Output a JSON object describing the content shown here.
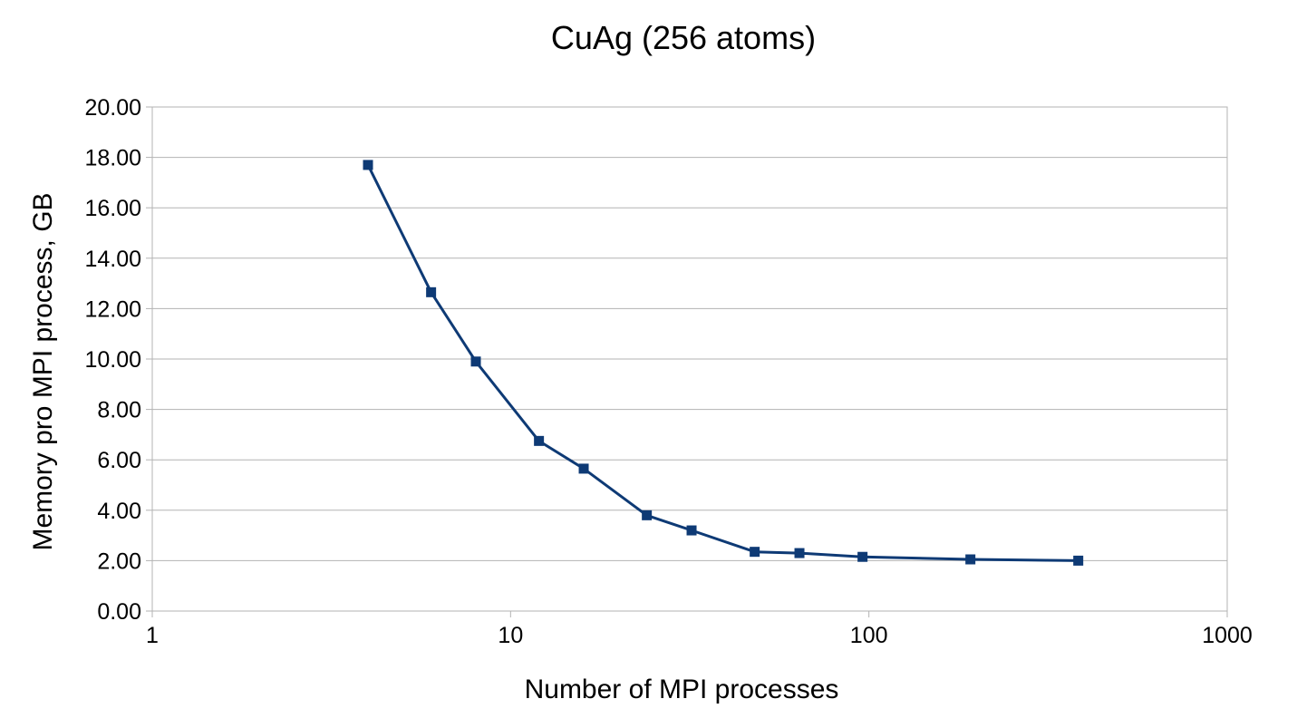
{
  "chart_data": {
    "type": "line",
    "title": "CuAg (256 atoms)",
    "xlabel": "Number of MPI processes",
    "ylabel": "Memory pro MPI process, GB",
    "xscale": "log",
    "xlim": [
      1,
      1000
    ],
    "ylim": [
      0,
      20
    ],
    "x_ticks": [
      1,
      10,
      100,
      1000
    ],
    "x_tick_labels": [
      "1",
      "10",
      "100",
      "1000"
    ],
    "y_ticks": [
      0,
      2,
      4,
      6,
      8,
      10,
      12,
      14,
      16,
      18,
      20
    ],
    "y_tick_labels": [
      "0.00",
      "2.00",
      "4.00",
      "6.00",
      "8.00",
      "10.00",
      "12.00",
      "14.00",
      "16.00",
      "18.00",
      "20.00"
    ],
    "grid": "horizontal",
    "legend": "none",
    "series": [
      {
        "name": "CuAg (256 atoms)",
        "color": "#0e3a75",
        "marker": "square",
        "x": [
          4,
          6,
          8,
          12,
          16,
          24,
          32,
          48,
          64,
          96,
          192,
          384
        ],
        "y": [
          17.7,
          12.65,
          9.9,
          6.75,
          5.65,
          3.8,
          3.2,
          2.35,
          2.3,
          2.15,
          2.05,
          2.0
        ]
      }
    ]
  }
}
